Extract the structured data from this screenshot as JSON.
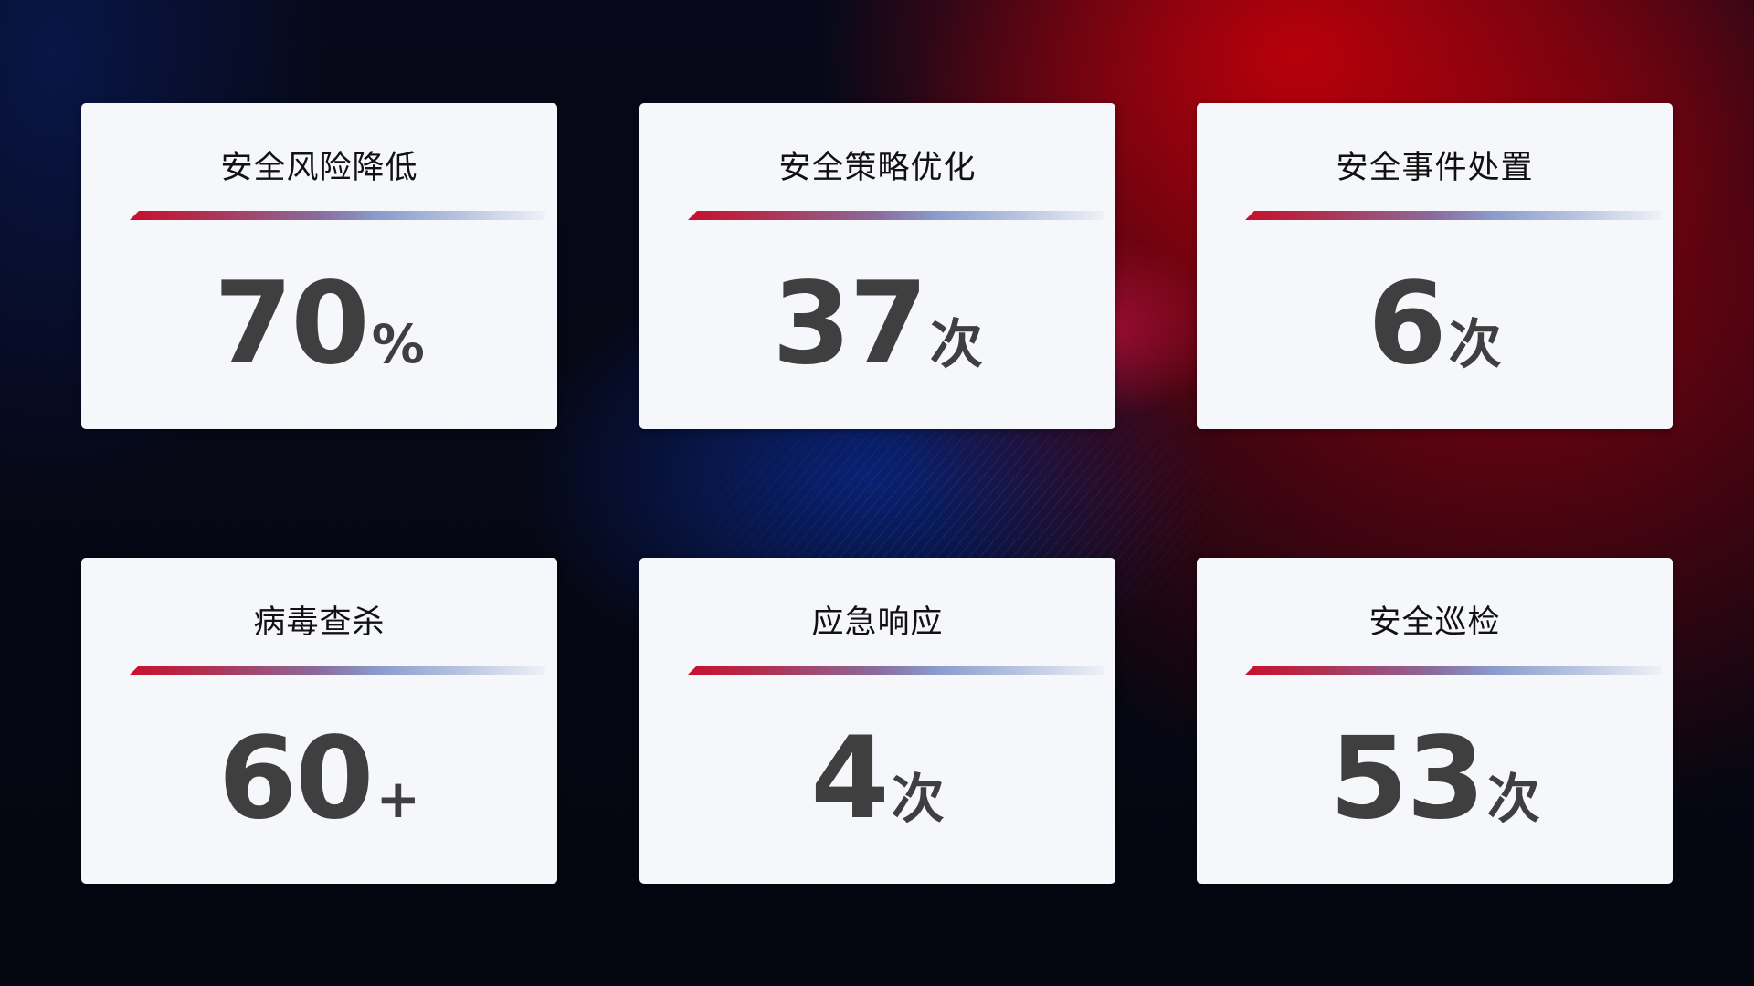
{
  "cards": [
    {
      "title": "安全风险降低",
      "value": "70",
      "unit": "%"
    },
    {
      "title": "安全策略优化",
      "value": "37",
      "unit": "次"
    },
    {
      "title": "安全事件处置",
      "value": "6",
      "unit": "次"
    },
    {
      "title": "病毒查杀",
      "value": "60",
      "unit": "+"
    },
    {
      "title": "应急响应",
      "value": "4",
      "unit": "次"
    },
    {
      "title": "安全巡检",
      "value": "53",
      "unit": "次"
    }
  ],
  "colors": {
    "accent_red": "#c8102e",
    "accent_blue": "#8a9ccc",
    "card_bg": "#f6f7fb",
    "value_text": "#3f3f3f"
  }
}
